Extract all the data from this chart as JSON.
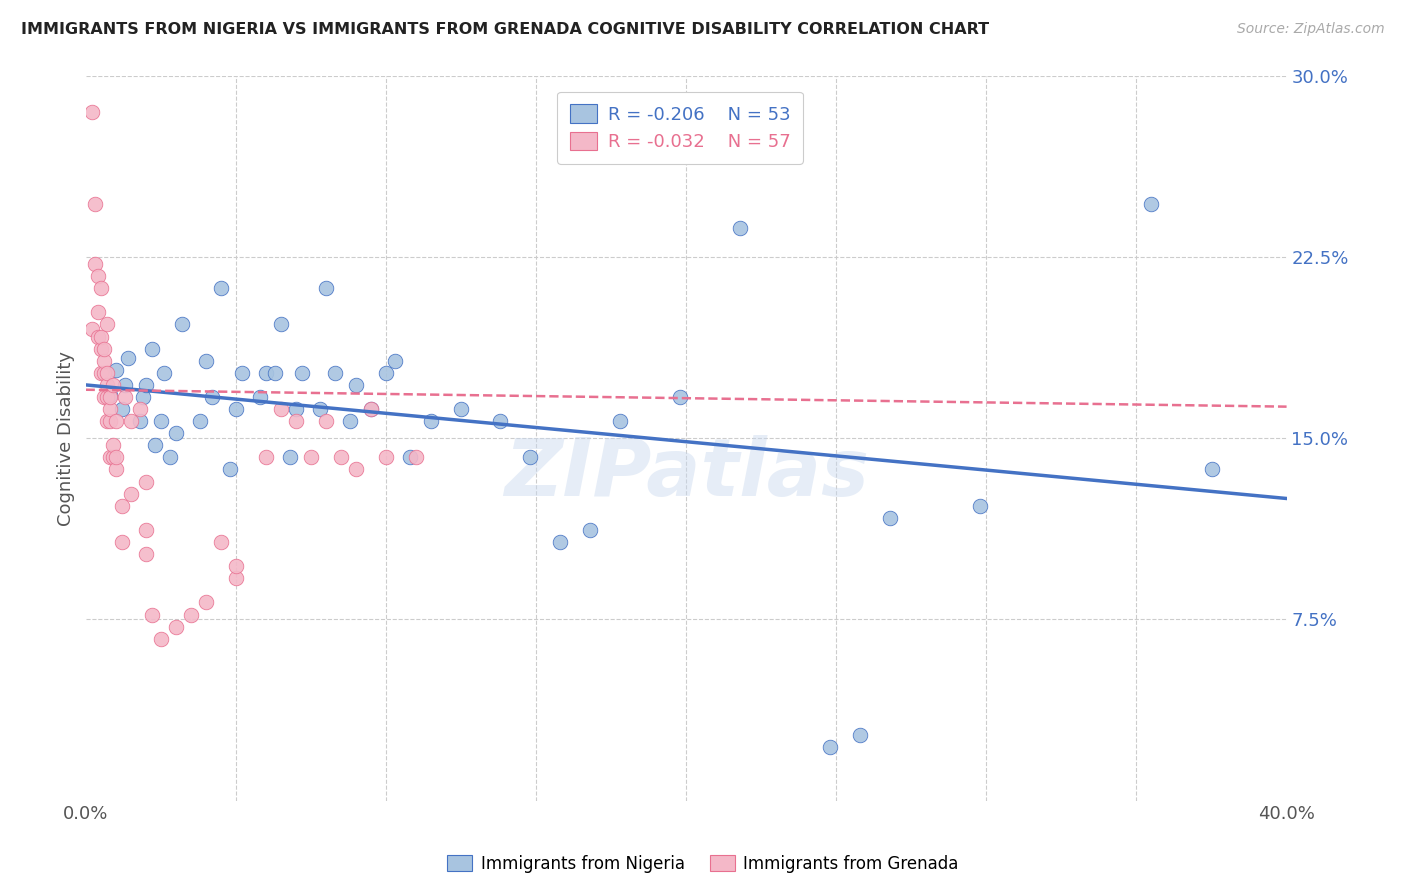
{
  "title": "IMMIGRANTS FROM NIGERIA VS IMMIGRANTS FROM GRENADA COGNITIVE DISABILITY CORRELATION CHART",
  "source": "Source: ZipAtlas.com",
  "ylabel": "Cognitive Disability",
  "x_min": 0.0,
  "x_max": 0.4,
  "y_min": 0.0,
  "y_max": 0.3,
  "x_ticks": [
    0.0,
    0.05,
    0.1,
    0.15,
    0.2,
    0.25,
    0.3,
    0.35,
    0.4
  ],
  "y_ticks": [
    0.0,
    0.075,
    0.15,
    0.225,
    0.3
  ],
  "y_tick_labels_right": [
    "",
    "7.5%",
    "15.0%",
    "22.5%",
    "30.0%"
  ],
  "nigeria_R": "-0.206",
  "nigeria_N": "53",
  "grenada_R": "-0.032",
  "grenada_N": "57",
  "nigeria_color": "#a8c4e0",
  "grenada_color": "#f4b8c8",
  "nigeria_line_color": "#4472c4",
  "grenada_line_color": "#e87090",
  "watermark": "ZIPatlas",
  "nigeria_line_x0": 0.0,
  "nigeria_line_y0": 0.172,
  "nigeria_line_x1": 0.4,
  "nigeria_line_y1": 0.125,
  "grenada_line_x0": 0.0,
  "grenada_line_y0": 0.17,
  "grenada_line_x1": 0.4,
  "grenada_line_y1": 0.163,
  "nigeria_points_x": [
    0.008,
    0.01,
    0.012,
    0.013,
    0.014,
    0.018,
    0.019,
    0.02,
    0.022,
    0.023,
    0.025,
    0.026,
    0.028,
    0.03,
    0.032,
    0.038,
    0.04,
    0.042,
    0.045,
    0.048,
    0.05,
    0.052,
    0.058,
    0.06,
    0.063,
    0.065,
    0.068,
    0.07,
    0.072,
    0.078,
    0.08,
    0.083,
    0.088,
    0.09,
    0.095,
    0.1,
    0.103,
    0.108,
    0.115,
    0.125,
    0.138,
    0.148,
    0.158,
    0.168,
    0.178,
    0.198,
    0.218,
    0.248,
    0.258,
    0.268,
    0.298,
    0.355,
    0.375
  ],
  "nigeria_points_y": [
    0.168,
    0.178,
    0.162,
    0.172,
    0.183,
    0.157,
    0.167,
    0.172,
    0.187,
    0.147,
    0.157,
    0.177,
    0.142,
    0.152,
    0.197,
    0.157,
    0.182,
    0.167,
    0.212,
    0.137,
    0.162,
    0.177,
    0.167,
    0.177,
    0.177,
    0.197,
    0.142,
    0.162,
    0.177,
    0.162,
    0.212,
    0.177,
    0.157,
    0.172,
    0.162,
    0.177,
    0.182,
    0.142,
    0.157,
    0.162,
    0.157,
    0.142,
    0.107,
    0.112,
    0.157,
    0.167,
    0.237,
    0.022,
    0.027,
    0.117,
    0.122,
    0.247,
    0.137
  ],
  "grenada_points_x": [
    0.002,
    0.002,
    0.003,
    0.003,
    0.004,
    0.004,
    0.004,
    0.005,
    0.005,
    0.005,
    0.005,
    0.006,
    0.006,
    0.006,
    0.006,
    0.007,
    0.007,
    0.007,
    0.007,
    0.007,
    0.008,
    0.008,
    0.008,
    0.008,
    0.009,
    0.009,
    0.009,
    0.01,
    0.01,
    0.01,
    0.012,
    0.012,
    0.013,
    0.015,
    0.015,
    0.018,
    0.02,
    0.02,
    0.02,
    0.022,
    0.025,
    0.03,
    0.035,
    0.04,
    0.045,
    0.05,
    0.05,
    0.06,
    0.065,
    0.07,
    0.075,
    0.08,
    0.085,
    0.09,
    0.095,
    0.1,
    0.11
  ],
  "grenada_points_y": [
    0.285,
    0.195,
    0.222,
    0.247,
    0.192,
    0.202,
    0.217,
    0.177,
    0.187,
    0.192,
    0.212,
    0.167,
    0.177,
    0.182,
    0.187,
    0.157,
    0.167,
    0.172,
    0.177,
    0.197,
    0.142,
    0.157,
    0.162,
    0.167,
    0.142,
    0.147,
    0.172,
    0.137,
    0.142,
    0.157,
    0.107,
    0.122,
    0.167,
    0.127,
    0.157,
    0.162,
    0.102,
    0.112,
    0.132,
    0.077,
    0.067,
    0.072,
    0.077,
    0.082,
    0.107,
    0.092,
    0.097,
    0.142,
    0.162,
    0.157,
    0.142,
    0.157,
    0.142,
    0.137,
    0.162,
    0.142,
    0.142
  ]
}
